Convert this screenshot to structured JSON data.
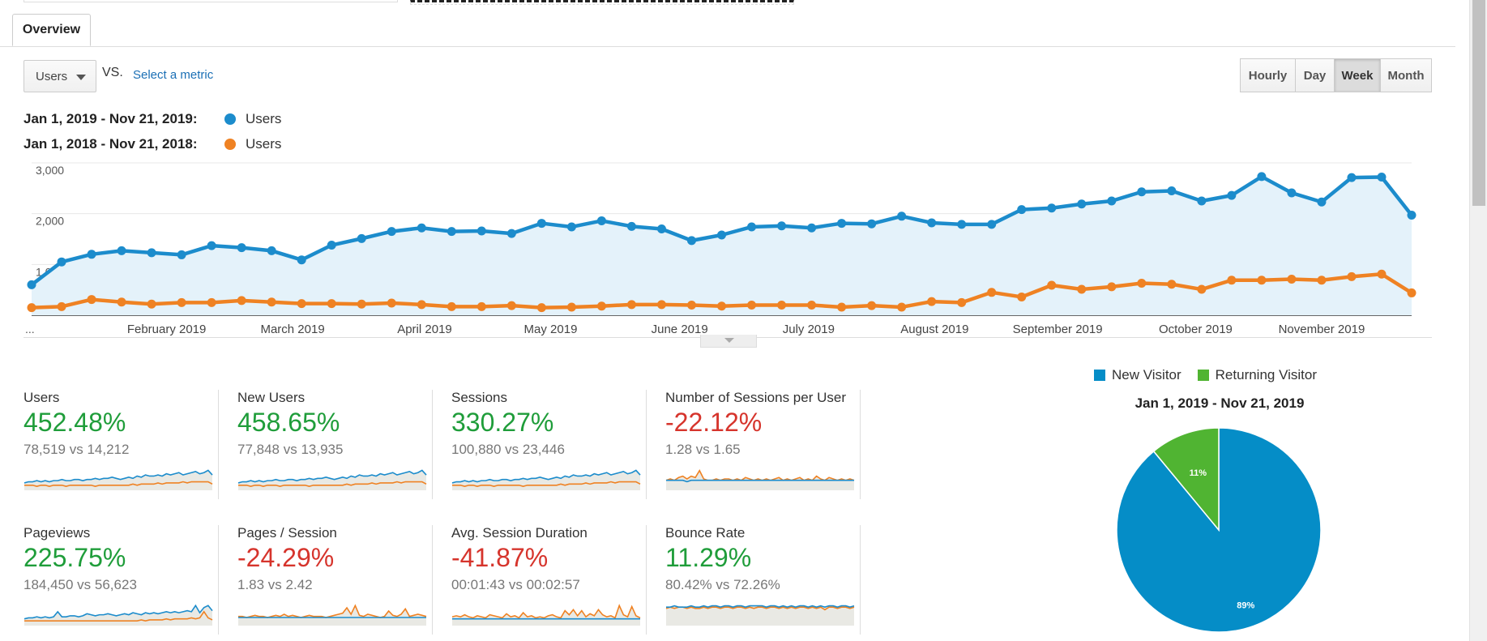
{
  "overview_tab": "Overview",
  "metric_selector": {
    "value": "Users"
  },
  "vs_label": "VS.",
  "select_metric_link": "Select a metric",
  "granularity": {
    "options": [
      "Hourly",
      "Day",
      "Week",
      "Month"
    ],
    "selected": "Week"
  },
  "legend": [
    {
      "range": "Jan 1, 2019 - Nov 21, 2019:",
      "series": "Users",
      "color": "#1c8ccc"
    },
    {
      "range": "Jan 1, 2018 - Nov 21, 2018:",
      "series": "Users",
      "color": "#ef8223"
    }
  ],
  "main_chart": {
    "chart_data": {
      "type": "line",
      "title": "",
      "ylim": [
        0,
        3000
      ],
      "y_ticks": [
        "3,000",
        "2,000",
        "1,000"
      ],
      "y_tick_values": [
        3000,
        2000,
        1000
      ],
      "first_x_label": "...",
      "month_labels": [
        "February 2019",
        "March 2019",
        "April 2019",
        "May 2019",
        "June 2019",
        "July 2019",
        "August 2019",
        "September 2019",
        "October 2019",
        "November 2019"
      ],
      "month_label_weeks": [
        4.5,
        8.7,
        13.1,
        17.3,
        21.6,
        25.9,
        30.1,
        34.2,
        38.8,
        43.0
      ],
      "grid": true,
      "area_fill": true,
      "series": [
        {
          "name": "Users",
          "period": "Jan 1, 2019 - Nov 21, 2019",
          "color": "#1c8ccc",
          "values": [
            600,
            1050,
            1200,
            1270,
            1230,
            1190,
            1370,
            1330,
            1270,
            1090,
            1380,
            1510,
            1650,
            1720,
            1650,
            1660,
            1610,
            1810,
            1740,
            1860,
            1750,
            1700,
            1470,
            1580,
            1740,
            1760,
            1720,
            1810,
            1800,
            1950,
            1820,
            1790,
            1790,
            2080,
            2110,
            2190,
            2250,
            2430,
            2450,
            2250,
            2360,
            2730,
            2410,
            2230,
            2710,
            2720,
            1970
          ]
        },
        {
          "name": "Users",
          "period": "Jan 1, 2018 - Nov 21, 2018",
          "color": "#ef8223",
          "values": [
            150,
            170,
            310,
            260,
            220,
            250,
            250,
            290,
            260,
            230,
            230,
            220,
            240,
            210,
            170,
            170,
            190,
            150,
            160,
            180,
            210,
            210,
            200,
            180,
            200,
            200,
            200,
            160,
            190,
            160,
            270,
            250,
            450,
            360,
            590,
            510,
            560,
            630,
            610,
            510,
            690,
            690,
            710,
            690,
            760,
            810,
            440
          ]
        }
      ]
    }
  },
  "scorecards": [
    {
      "label": "Users",
      "pct": "452.48%",
      "trend": "up",
      "comparison": "78,519 vs 14,212",
      "spark_a": [
        5,
        6,
        6,
        7,
        6,
        7,
        6,
        7,
        7,
        8,
        7,
        7,
        8,
        8,
        7,
        8,
        8,
        9,
        8,
        9,
        9,
        10,
        9,
        8,
        9,
        10,
        9,
        11,
        10,
        12,
        11,
        11,
        12,
        11,
        13,
        12,
        13,
        14,
        12,
        13,
        14,
        15,
        13,
        14,
        16,
        12
      ],
      "spark_b": [
        3,
        3,
        3,
        2,
        3,
        3,
        2,
        3,
        3,
        3,
        2,
        3,
        3,
        3,
        3,
        3,
        3,
        2,
        3,
        3,
        3,
        3,
        3,
        3,
        3,
        3,
        4,
        3,
        4,
        4,
        4,
        4,
        5,
        4,
        5,
        5,
        5,
        5,
        6,
        5,
        6,
        6,
        6,
        6,
        6,
        4
      ]
    },
    {
      "label": "New Users",
      "pct": "458.65%",
      "trend": "up",
      "comparison": "77,848 vs 13,935",
      "spark_a": [
        5,
        6,
        6,
        7,
        6,
        7,
        6,
        7,
        7,
        8,
        7,
        7,
        8,
        8,
        7,
        8,
        8,
        9,
        8,
        9,
        9,
        10,
        9,
        8,
        9,
        10,
        9,
        11,
        10,
        12,
        11,
        11,
        12,
        11,
        13,
        12,
        13,
        14,
        12,
        13,
        14,
        15,
        13,
        14,
        16,
        12
      ],
      "spark_b": [
        3,
        3,
        3,
        2,
        3,
        3,
        2,
        3,
        3,
        3,
        2,
        3,
        3,
        3,
        3,
        3,
        3,
        2,
        3,
        3,
        3,
        3,
        3,
        3,
        3,
        3,
        4,
        3,
        4,
        4,
        4,
        4,
        5,
        4,
        5,
        5,
        5,
        5,
        6,
        5,
        6,
        6,
        6,
        6,
        6,
        4
      ]
    },
    {
      "label": "Sessions",
      "pct": "330.27%",
      "trend": "up",
      "comparison": "100,880 vs 23,446",
      "spark_a": [
        5,
        6,
        6,
        7,
        6,
        7,
        6,
        7,
        7,
        8,
        7,
        7,
        8,
        8,
        7,
        8,
        8,
        9,
        8,
        9,
        9,
        10,
        9,
        8,
        9,
        10,
        9,
        11,
        10,
        12,
        11,
        11,
        12,
        11,
        13,
        12,
        13,
        14,
        12,
        13,
        14,
        15,
        13,
        14,
        16,
        12
      ],
      "spark_b": [
        3,
        3,
        3,
        2,
        3,
        3,
        2,
        3,
        3,
        3,
        2,
        3,
        3,
        3,
        3,
        3,
        3,
        2,
        3,
        3,
        3,
        3,
        3,
        3,
        3,
        3,
        4,
        3,
        4,
        4,
        4,
        4,
        5,
        4,
        5,
        5,
        5,
        5,
        6,
        5,
        6,
        6,
        6,
        6,
        6,
        4
      ]
    },
    {
      "label": "Number of Sessions per User",
      "pct": "-22.12%",
      "trend": "down",
      "comparison": "1.28 vs 1.65",
      "spark_a": [
        6,
        6,
        6,
        6,
        6,
        5,
        6,
        6,
        6,
        6,
        6,
        6,
        6,
        6,
        6,
        6,
        6,
        6,
        6,
        6,
        6,
        6,
        6,
        6,
        6,
        6,
        6,
        6,
        6,
        6,
        6,
        6,
        6,
        6,
        6,
        6,
        6,
        6,
        6,
        6,
        6,
        6,
        6,
        6,
        6,
        6
      ],
      "spark_b": [
        6,
        7,
        6,
        8,
        9,
        7,
        9,
        8,
        13,
        7,
        6,
        6,
        7,
        6,
        7,
        7,
        6,
        7,
        6,
        8,
        7,
        6,
        7,
        6,
        7,
        6,
        7,
        8,
        6,
        7,
        6,
        7,
        8,
        6,
        7,
        6,
        9,
        7,
        6,
        8,
        7,
        6,
        7,
        6,
        7,
        6
      ]
    },
    {
      "label": "Pageviews",
      "pct": "225.75%",
      "trend": "up",
      "comparison": "184,450 vs 56,623",
      "spark_a": [
        5,
        6,
        6,
        7,
        6,
        7,
        6,
        7,
        12,
        7,
        7,
        8,
        8,
        7,
        8,
        10,
        9,
        8,
        9,
        9,
        10,
        9,
        8,
        9,
        10,
        9,
        11,
        10,
        9,
        11,
        10,
        11,
        10,
        11,
        12,
        11,
        12,
        11,
        12,
        13,
        12,
        18,
        11,
        16,
        18,
        13
      ],
      "spark_b": [
        3,
        3,
        3,
        3,
        3,
        3,
        3,
        3,
        3,
        3,
        3,
        3,
        3,
        3,
        3,
        3,
        3,
        3,
        3,
        3,
        3,
        3,
        3,
        3,
        3,
        3,
        3,
        3,
        4,
        3,
        4,
        4,
        4,
        4,
        5,
        4,
        5,
        5,
        5,
        5,
        6,
        5,
        6,
        12,
        6,
        4
      ]
    },
    {
      "label": "Pages / Session",
      "pct": "-24.29%",
      "trend": "down",
      "comparison": "1.83 vs 2.42",
      "spark_a": [
        6,
        6,
        6,
        6,
        6,
        6,
        6,
        6,
        6,
        6,
        6,
        6,
        6,
        6,
        6,
        6,
        6,
        6,
        6,
        6,
        6,
        6,
        6,
        6,
        6,
        6,
        6,
        6,
        6,
        6,
        6,
        6,
        6,
        6,
        6,
        6,
        6,
        6,
        6,
        6,
        6,
        6,
        6,
        6,
        6,
        6
      ],
      "spark_b": [
        7,
        7,
        6,
        7,
        8,
        7,
        7,
        6,
        7,
        8,
        7,
        9,
        7,
        8,
        7,
        6,
        7,
        8,
        7,
        7,
        7,
        6,
        7,
        8,
        9,
        10,
        15,
        9,
        17,
        8,
        7,
        9,
        8,
        7,
        6,
        7,
        12,
        8,
        7,
        9,
        14,
        7,
        8,
        9,
        8,
        7
      ]
    },
    {
      "label": "Avg. Session Duration",
      "pct": "-41.87%",
      "trend": "down",
      "comparison": "00:01:43 vs 00:02:57",
      "spark_a": [
        5,
        5,
        5,
        5,
        5,
        5,
        5,
        5,
        5,
        5,
        5,
        5,
        5,
        5,
        5,
        5,
        5,
        5,
        5,
        5,
        5,
        5,
        5,
        5,
        5,
        5,
        5,
        5,
        5,
        5,
        5,
        5,
        5,
        5,
        5,
        5,
        5,
        5,
        5,
        5,
        5,
        5,
        5,
        5,
        5,
        5
      ],
      "spark_b": [
        7,
        8,
        7,
        9,
        7,
        6,
        8,
        7,
        6,
        9,
        8,
        7,
        6,
        10,
        7,
        8,
        6,
        11,
        7,
        8,
        6,
        7,
        6,
        8,
        9,
        7,
        6,
        13,
        9,
        14,
        8,
        13,
        7,
        10,
        8,
        14,
        9,
        7,
        8,
        6,
        18,
        9,
        7,
        17,
        8,
        6
      ]
    },
    {
      "label": "Bounce Rate",
      "pct": "11.29%",
      "trend": "up",
      "comparison": "80.42% vs 72.26%",
      "spark_a": [
        13,
        13,
        14,
        13,
        13,
        13,
        14,
        13,
        13,
        14,
        13,
        14,
        14,
        13,
        14,
        14,
        13,
        14,
        14,
        13,
        14,
        14,
        14,
        14,
        13,
        14,
        14,
        13,
        14,
        13,
        14,
        13,
        14,
        14,
        13,
        14,
        13,
        14,
        13,
        14,
        14,
        13,
        14,
        14,
        13,
        14
      ],
      "spark_b": [
        12,
        13,
        12,
        13,
        13,
        12,
        13,
        12,
        12,
        13,
        12,
        13,
        13,
        12,
        13,
        13,
        12,
        13,
        13,
        12,
        13,
        12,
        13,
        13,
        12,
        13,
        13,
        12,
        13,
        12,
        13,
        12,
        13,
        13,
        12,
        13,
        12,
        13,
        11,
        13,
        13,
        12,
        13,
        13,
        12,
        13
      ]
    }
  ],
  "pie": {
    "legend": [
      {
        "label": "New Visitor",
        "color": "#058dc7"
      },
      {
        "label": "Returning Visitor",
        "color": "#50b432"
      }
    ],
    "title": "Jan 1, 2019 - Nov 21, 2019",
    "chart_data": {
      "type": "pie",
      "slices": [
        {
          "label": "New Visitor",
          "value": 89,
          "text": "89%",
          "color": "#058dc7"
        },
        {
          "label": "Returning Visitor",
          "value": 11,
          "text": "11%",
          "color": "#50b432"
        }
      ]
    }
  }
}
